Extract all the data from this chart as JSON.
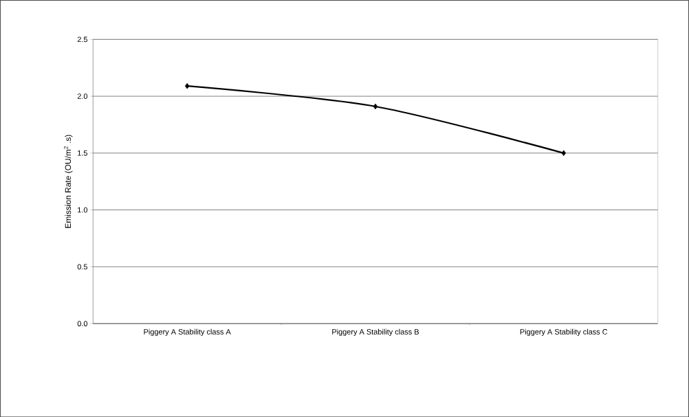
{
  "chart_data": {
    "type": "line",
    "ylabel": "Emission Rate (OU/m$^{2}$ .s)",
    "categories": [
      "Piggery A Stability class A",
      "Piggery A Stability class B",
      "Piggery A Stability class C"
    ],
    "series": [
      {
        "color": "#000000",
        "values": [
          2.09,
          1.91,
          1.5
        ]
      }
    ],
    "ylim": [
      0,
      2.5
    ],
    "yticks": [
      {
        "value": 0,
        "label": "0.0"
      },
      0.5,
      {
        "value": 1,
        "label": "1.0"
      },
      1.5,
      {
        "value": 2,
        "label": "2.0"
      },
      2.5
    ],
    "grid": "y",
    "marker": "diamond",
    "line_style": "solid"
  }
}
